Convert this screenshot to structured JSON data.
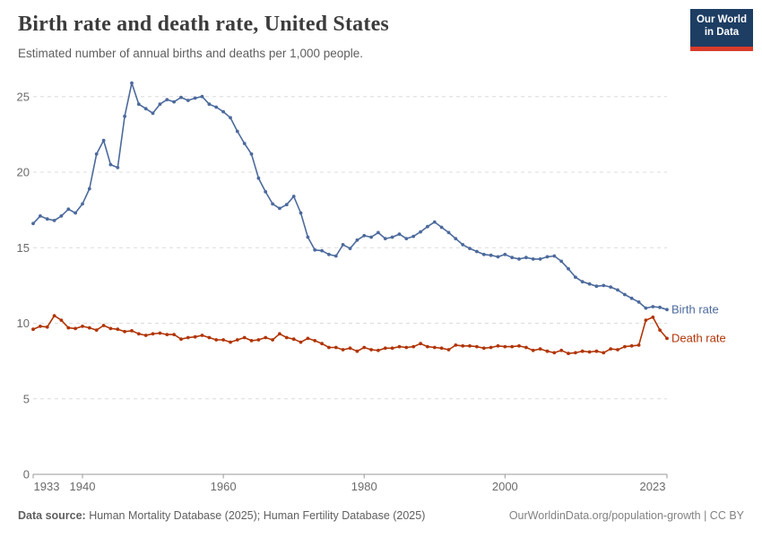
{
  "header": {
    "title": "Birth rate and death rate, United States",
    "subtitle": "Estimated number of annual births and deaths per 1,000 people."
  },
  "logo": {
    "line1": "Our World",
    "line2": "in Data",
    "bg_color": "#1d3d63",
    "bar_color": "#d93b2b"
  },
  "footer": {
    "source_label": "Data source:",
    "source_text": " Human Mortality Database (2025); Human Fertility Database (2025)",
    "credit": "OurWorldinData.org/population-growth | CC BY"
  },
  "chart_data": {
    "type": "line",
    "title": "Birth rate and death rate, United States",
    "xlabel": "",
    "ylabel": "",
    "x_range": [
      1933,
      2023
    ],
    "ylim": [
      0,
      27
    ],
    "grid": "dashed-horizontal",
    "legend_position": "right-of-line-end",
    "x_ticks": [
      1933,
      1940,
      1960,
      1980,
      2000,
      2023
    ],
    "y_ticks": [
      0,
      5,
      10,
      15,
      20,
      25
    ],
    "colors": {
      "grid": "#dcdcdc",
      "axis": "#999999",
      "tick_text": "#6b6b6b"
    },
    "years": [
      1933,
      1934,
      1935,
      1936,
      1937,
      1938,
      1939,
      1940,
      1941,
      1942,
      1943,
      1944,
      1945,
      1946,
      1947,
      1948,
      1949,
      1950,
      1951,
      1952,
      1953,
      1954,
      1955,
      1956,
      1957,
      1958,
      1959,
      1960,
      1961,
      1962,
      1963,
      1964,
      1965,
      1966,
      1967,
      1968,
      1969,
      1970,
      1971,
      1972,
      1973,
      1974,
      1975,
      1976,
      1977,
      1978,
      1979,
      1980,
      1981,
      1982,
      1983,
      1984,
      1985,
      1986,
      1987,
      1988,
      1989,
      1990,
      1991,
      1992,
      1993,
      1994,
      1995,
      1996,
      1997,
      1998,
      1999,
      2000,
      2001,
      2002,
      2003,
      2004,
      2005,
      2006,
      2007,
      2008,
      2009,
      2010,
      2011,
      2012,
      2013,
      2014,
      2015,
      2016,
      2017,
      2018,
      2019,
      2020,
      2021,
      2022,
      2023
    ],
    "series": [
      {
        "id": "birth-rate",
        "name": "Birth rate",
        "color": "#4c6a9c",
        "values": [
          16.6,
          17.1,
          16.9,
          16.8,
          17.1,
          17.55,
          17.3,
          17.9,
          18.9,
          21.2,
          22.1,
          20.5,
          20.3,
          23.7,
          25.9,
          24.5,
          24.2,
          23.9,
          24.5,
          24.8,
          24.65,
          24.95,
          24.75,
          24.9,
          25.0,
          24.5,
          24.3,
          24.0,
          23.6,
          22.7,
          21.9,
          21.2,
          19.6,
          18.7,
          17.9,
          17.6,
          17.85,
          18.4,
          17.3,
          15.7,
          14.85,
          14.8,
          14.55,
          14.45,
          15.2,
          14.95,
          15.5,
          15.8,
          15.7,
          16.0,
          15.6,
          15.7,
          15.9,
          15.6,
          15.75,
          16.05,
          16.4,
          16.7,
          16.35,
          16.0,
          15.6,
          15.2,
          14.95,
          14.75,
          14.55,
          14.5,
          14.4,
          14.55,
          14.35,
          14.25,
          14.35,
          14.25,
          14.25,
          14.4,
          14.45,
          14.1,
          13.6,
          13.05,
          12.75,
          12.6,
          12.45,
          12.5,
          12.4,
          12.2,
          11.9,
          11.65,
          11.4,
          11.0,
          11.1,
          11.05,
          10.9
        ]
      },
      {
        "id": "death-rate",
        "name": "Death rate",
        "color": "#b13507",
        "values": [
          9.6,
          9.8,
          9.75,
          10.5,
          10.2,
          9.7,
          9.65,
          9.8,
          9.7,
          9.55,
          9.85,
          9.65,
          9.6,
          9.45,
          9.5,
          9.3,
          9.2,
          9.3,
          9.35,
          9.25,
          9.25,
          8.95,
          9.05,
          9.1,
          9.2,
          9.05,
          8.9,
          8.9,
          8.75,
          8.9,
          9.05,
          8.85,
          8.9,
          9.05,
          8.9,
          9.3,
          9.05,
          8.95,
          8.75,
          9.0,
          8.85,
          8.65,
          8.4,
          8.4,
          8.25,
          8.35,
          8.15,
          8.4,
          8.25,
          8.2,
          8.35,
          8.35,
          8.45,
          8.4,
          8.45,
          8.65,
          8.45,
          8.4,
          8.35,
          8.25,
          8.55,
          8.5,
          8.5,
          8.45,
          8.35,
          8.4,
          8.5,
          8.45,
          8.45,
          8.5,
          8.4,
          8.2,
          8.3,
          8.15,
          8.05,
          8.2,
          8.0,
          8.05,
          8.15,
          8.1,
          8.15,
          8.05,
          8.3,
          8.25,
          8.45,
          8.5,
          8.55,
          10.2,
          10.4,
          9.55,
          9.0
        ]
      }
    ]
  }
}
